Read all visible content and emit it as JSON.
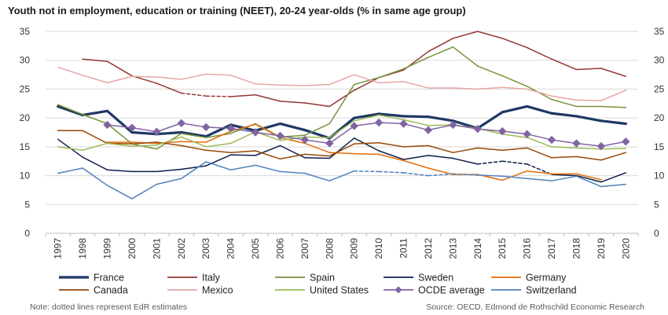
{
  "title": "Youth not in employment, education or training (NEET), 20-24 year-olds (% in same age group)",
  "note": "Note: dotted lines represent EdR estimates",
  "source": "Source: OECD, Edmond de Rothschild Economic Research",
  "chart_data": {
    "type": "line",
    "categories": [
      "1997",
      "1998",
      "1999",
      "2000",
      "2001",
      "2002",
      "2003",
      "2004",
      "2005",
      "2006",
      "2007",
      "2008",
      "2009",
      "2010",
      "2011",
      "2012",
      "2013",
      "2014",
      "2015",
      "2016",
      "2017",
      "2018",
      "2019",
      "2020"
    ],
    "ylim": [
      0,
      35
    ],
    "yticks": [
      0,
      5,
      10,
      15,
      20,
      25,
      30,
      35
    ],
    "grid": true,
    "legend_position": "bottom",
    "series": [
      {
        "name": "France",
        "color": "#1f3864",
        "width": 3.2,
        "marker": "none",
        "values": [
          22.0,
          20.5,
          21.2,
          17.5,
          17.2,
          17.5,
          16.8,
          18.8,
          17.8,
          19.0,
          17.9,
          16.5,
          20.0,
          20.7,
          20.3,
          20.2,
          19.5,
          18.2,
          21.0,
          22.0,
          20.8,
          20.3,
          19.5,
          19.0
        ],
        "dashed_from": null,
        "dashed_to": null
      },
      {
        "name": "Italy",
        "color": "#943634",
        "width": 1.5,
        "marker": "none",
        "values": [
          null,
          30.2,
          29.8,
          27.3,
          26.0,
          24.3,
          23.8,
          23.7,
          24.0,
          22.9,
          22.6,
          22.0,
          24.8,
          27.0,
          28.3,
          31.5,
          33.8,
          35.0,
          33.8,
          32.2,
          30.2,
          28.4,
          28.6,
          27.2
        ],
        "dashed_from": 5,
        "dashed_to": 7
      },
      {
        "name": "Spain",
        "color": "#77933c",
        "width": 1.5,
        "marker": "none",
        "values": [
          22.3,
          20.6,
          19.0,
          15.5,
          14.6,
          17.3,
          16.6,
          17.3,
          19.0,
          16.7,
          17.0,
          19.0,
          25.8,
          27.0,
          28.5,
          30.5,
          32.3,
          29.0,
          27.3,
          25.5,
          23.2,
          22.0,
          22.0,
          21.8
        ],
        "dashed_from": null,
        "dashed_to": null
      },
      {
        "name": "Sweden",
        "color": "#0d1f4a",
        "width": 1.5,
        "marker": "none",
        "values": [
          16.3,
          13.2,
          11.0,
          10.7,
          10.7,
          11.1,
          11.7,
          13.6,
          13.5,
          15.2,
          13.1,
          13.0,
          16.5,
          14.3,
          12.8,
          13.5,
          13.0,
          12.0,
          12.5,
          12.0,
          10.2,
          10.0,
          8.9,
          10.5
        ],
        "dashed_from": 17,
        "dashed_to": 20
      },
      {
        "name": "Germany",
        "color": "#e36c09",
        "width": 1.5,
        "marker": "none",
        "values": [
          null,
          null,
          15.8,
          15.8,
          15.6,
          15.9,
          15.8,
          17.7,
          18.9,
          16.6,
          15.6,
          14.0,
          13.8,
          13.7,
          12.6,
          11.3,
          10.2,
          10.2,
          9.2,
          10.8,
          10.3,
          10.3,
          9.3,
          null
        ],
        "dashed_from": null,
        "dashed_to": null
      },
      {
        "name": "Canada",
        "color": "#974706",
        "width": 1.5,
        "marker": "none",
        "values": [
          17.8,
          17.8,
          15.6,
          15.5,
          15.8,
          15.2,
          14.4,
          14.0,
          14.3,
          12.9,
          13.7,
          13.4,
          15.5,
          15.7,
          15.0,
          15.2,
          14.0,
          14.8,
          14.4,
          14.8,
          13.1,
          13.3,
          12.7,
          14.0
        ],
        "dashed_from": null,
        "dashed_to": null
      },
      {
        "name": "Mexico",
        "color": "#e6a5a5",
        "width": 1.5,
        "marker": "none",
        "values": [
          28.8,
          27.4,
          26.1,
          27.2,
          27.1,
          26.7,
          27.6,
          27.4,
          25.9,
          25.7,
          25.6,
          25.8,
          27.5,
          26.1,
          26.3,
          25.2,
          25.2,
          25.0,
          25.3,
          25.0,
          23.8,
          23.1,
          23.0,
          24.8
        ],
        "dashed_from": null,
        "dashed_to": null
      },
      {
        "name": "United States",
        "color": "#9bbb59",
        "width": 1.5,
        "marker": "none",
        "values": [
          15.0,
          14.4,
          15.6,
          15.1,
          15.3,
          16.7,
          15.0,
          15.6,
          17.6,
          16.1,
          16.7,
          16.6,
          19.5,
          20.5,
          19.7,
          18.7,
          18.8,
          18.2,
          17.2,
          16.6,
          15.0,
          14.8,
          14.6,
          14.7
        ],
        "dashed_from": null,
        "dashed_to": null
      },
      {
        "name": "OCDE average",
        "color": "#8064a2",
        "width": 1.5,
        "marker": "diamond",
        "values": [
          null,
          null,
          18.8,
          18.3,
          17.6,
          19.1,
          18.4,
          18.2,
          17.5,
          16.9,
          16.2,
          15.6,
          18.6,
          19.2,
          19.0,
          17.9,
          18.8,
          18.1,
          17.7,
          17.2,
          16.2,
          15.6,
          15.1,
          15.9
        ],
        "dashed_from": null,
        "dashed_to": null
      },
      {
        "name": "Switzerland",
        "color": "#4f81bd",
        "width": 1.5,
        "marker": "none",
        "values": [
          10.4,
          11.3,
          8.3,
          6.0,
          8.5,
          9.5,
          12.4,
          11.0,
          11.8,
          10.7,
          10.4,
          9.1,
          10.8,
          10.7,
          10.5,
          10.0,
          10.3,
          10.1,
          9.9,
          9.5,
          9.1,
          9.9,
          8.1,
          8.5
        ],
        "dashed_from": 12,
        "dashed_to": 17
      }
    ]
  }
}
